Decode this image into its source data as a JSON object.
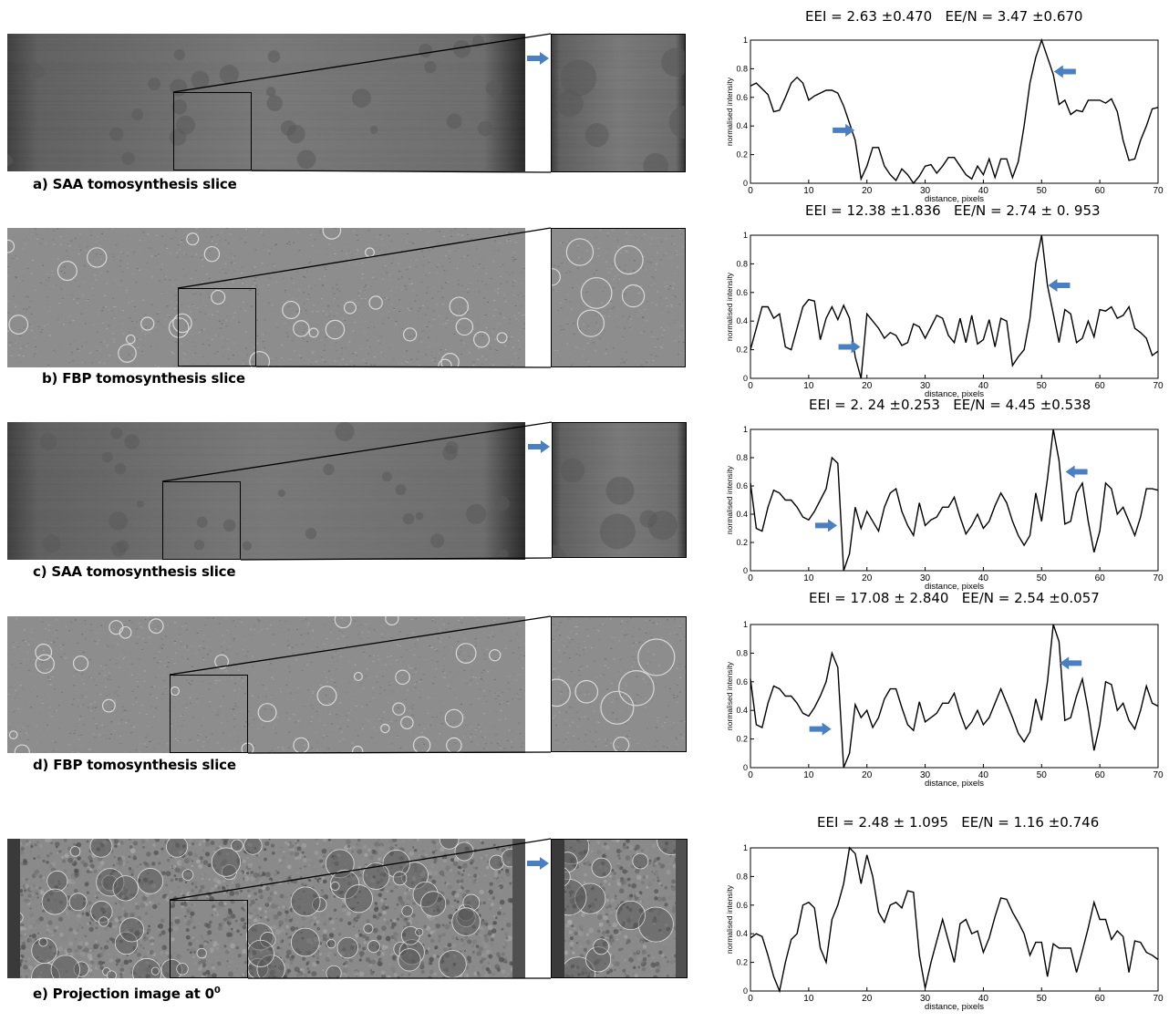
{
  "panels": [
    {
      "caption": "a)  SAA tomosynthesis slice",
      "style": "saa",
      "arrow": true
    },
    {
      "caption": "b)  FBP tomosynthesis slice",
      "style": "fbp",
      "arrow": false
    },
    {
      "caption": "c)  SAA tomosynthesis slice",
      "style": "saa",
      "arrow": true
    },
    {
      "caption": "d)  FBP tomosynthesis slice",
      "style": "fbp",
      "arrow": false
    },
    {
      "caption": "e) Projection image at 0",
      "caption_sup": "0",
      "style": "proj",
      "arrow": true
    }
  ],
  "arrow_color": "#4a7fc1",
  "chart_data": [
    {
      "type": "line",
      "title": "EEI = 2.63 ±0.470   EE/N = 3.47 ±0.670",
      "xlabel": "distance, pixels",
      "ylabel": "normalised intensity",
      "xlim": [
        0,
        70
      ],
      "ylim": [
        0,
        1
      ],
      "xticks": [
        "0",
        "10",
        "20",
        "30",
        "40",
        "50",
        "60",
        "70"
      ],
      "yticks": [
        "0",
        "0.2",
        "0.4",
        "0.6",
        "0.8",
        "1"
      ],
      "x": [
        0,
        1,
        2,
        3,
        4,
        5,
        6,
        7,
        8,
        9,
        10,
        11,
        12,
        13,
        14,
        15,
        16,
        17,
        18,
        19,
        20,
        21,
        22,
        23,
        24,
        25,
        26,
        27,
        28,
        29,
        30,
        31,
        32,
        33,
        34,
        35,
        36,
        37,
        38,
        39,
        40,
        41,
        42,
        43,
        44,
        45,
        46,
        47,
        48,
        49,
        50,
        51,
        52,
        53,
        54,
        55,
        56,
        57,
        58,
        59,
        60,
        61,
        62,
        63,
        64,
        65,
        66,
        67,
        68,
        69,
        70
      ],
      "y": [
        0.68,
        0.7,
        0.66,
        0.62,
        0.5,
        0.51,
        0.6,
        0.7,
        0.74,
        0.7,
        0.58,
        0.61,
        0.63,
        0.65,
        0.65,
        0.63,
        0.54,
        0.42,
        0.3,
        0.03,
        0.12,
        0.25,
        0.25,
        0.12,
        0.06,
        0.02,
        0.1,
        0.06,
        0.0,
        0.05,
        0.12,
        0.13,
        0.07,
        0.12,
        0.18,
        0.18,
        0.12,
        0.06,
        0.03,
        0.12,
        0.06,
        0.17,
        0.04,
        0.17,
        0.17,
        0.04,
        0.15,
        0.4,
        0.7,
        0.88,
        1.0,
        0.88,
        0.76,
        0.55,
        0.58,
        0.48,
        0.51,
        0.5,
        0.58,
        0.58,
        0.58,
        0.56,
        0.59,
        0.5,
        0.3,
        0.16,
        0.17,
        0.3,
        0.4,
        0.52,
        0.53
      ],
      "arrows": [
        {
          "x": 16,
          "y": 0.37,
          "dir": "right"
        },
        {
          "x": 54,
          "y": 0.78,
          "dir": "left"
        }
      ]
    },
    {
      "type": "line",
      "title": "EEI = 12.38 ±1.836   EE/N = 2.74 ± 0. 953",
      "xlabel": "distance, pixels",
      "ylabel": "normalised intensity",
      "xlim": [
        0,
        70
      ],
      "ylim": [
        0,
        1
      ],
      "xticks": [
        "0",
        "10",
        "20",
        "30",
        "40",
        "50",
        "60",
        "70"
      ],
      "yticks": [
        "0",
        "0.2",
        "0.4",
        "0.6",
        "0.8",
        "1"
      ],
      "x": [
        0,
        1,
        2,
        3,
        4,
        5,
        6,
        7,
        8,
        9,
        10,
        11,
        12,
        13,
        14,
        15,
        16,
        17,
        18,
        19,
        20,
        21,
        22,
        23,
        24,
        25,
        26,
        27,
        28,
        29,
        30,
        31,
        32,
        33,
        34,
        35,
        36,
        37,
        38,
        39,
        40,
        41,
        42,
        43,
        44,
        45,
        46,
        47,
        48,
        49,
        50,
        51,
        52,
        53,
        54,
        55,
        56,
        57,
        58,
        59,
        60,
        61,
        62,
        63,
        64,
        65,
        66,
        67,
        68,
        69,
        70
      ],
      "y": [
        0.2,
        0.35,
        0.5,
        0.5,
        0.42,
        0.45,
        0.22,
        0.2,
        0.35,
        0.5,
        0.55,
        0.54,
        0.27,
        0.42,
        0.5,
        0.41,
        0.51,
        0.42,
        0.15,
        0.0,
        0.45,
        0.4,
        0.35,
        0.28,
        0.32,
        0.3,
        0.23,
        0.25,
        0.38,
        0.36,
        0.28,
        0.36,
        0.44,
        0.42,
        0.3,
        0.25,
        0.42,
        0.25,
        0.44,
        0.24,
        0.27,
        0.41,
        0.22,
        0.42,
        0.4,
        0.09,
        0.15,
        0.2,
        0.42,
        0.8,
        1.0,
        0.65,
        0.45,
        0.25,
        0.48,
        0.45,
        0.25,
        0.28,
        0.4,
        0.29,
        0.48,
        0.47,
        0.5,
        0.42,
        0.44,
        0.5,
        0.35,
        0.32,
        0.28,
        0.16,
        0.19
      ],
      "arrows": [
        {
          "x": 17,
          "y": 0.22,
          "dir": "right"
        },
        {
          "x": 53,
          "y": 0.65,
          "dir": "left"
        }
      ]
    },
    {
      "type": "line",
      "title": "EEI = 2. 24 ±0.253   EE/N = 4.45 ±0.538",
      "xlabel": "distance, pixels",
      "ylabel": "normalised intensity",
      "xlim": [
        0,
        70
      ],
      "ylim": [
        0,
        1
      ],
      "xticks": [
        "0",
        "10",
        "20",
        "30",
        "40",
        "50",
        "60",
        "70"
      ],
      "yticks": [
        "0",
        "0.2",
        "0.4",
        "0.6",
        "0.8",
        "1"
      ],
      "x": [
        0,
        1,
        2,
        3,
        4,
        5,
        6,
        7,
        8,
        9,
        10,
        11,
        12,
        13,
        14,
        15,
        16,
        17,
        18,
        19,
        20,
        21,
        22,
        23,
        24,
        25,
        26,
        27,
        28,
        29,
        30,
        31,
        32,
        33,
        34,
        35,
        36,
        37,
        38,
        39,
        40,
        41,
        42,
        43,
        44,
        45,
        46,
        47,
        48,
        49,
        50,
        51,
        52,
        53,
        54,
        55,
        56,
        57,
        58,
        59,
        60,
        61,
        62,
        63,
        64,
        65,
        66,
        67,
        68,
        69,
        70
      ],
      "y": [
        0.62,
        0.3,
        0.28,
        0.45,
        0.57,
        0.55,
        0.5,
        0.5,
        0.45,
        0.38,
        0.36,
        0.42,
        0.5,
        0.58,
        0.8,
        0.76,
        0.0,
        0.12,
        0.45,
        0.3,
        0.42,
        0.35,
        0.28,
        0.45,
        0.55,
        0.58,
        0.42,
        0.32,
        0.25,
        0.48,
        0.32,
        0.36,
        0.38,
        0.45,
        0.45,
        0.52,
        0.38,
        0.26,
        0.32,
        0.4,
        0.3,
        0.35,
        0.46,
        0.55,
        0.48,
        0.35,
        0.25,
        0.18,
        0.25,
        0.55,
        0.35,
        0.65,
        1.0,
        0.78,
        0.33,
        0.35,
        0.55,
        0.62,
        0.35,
        0.13,
        0.28,
        0.62,
        0.58,
        0.4,
        0.45,
        0.35,
        0.25,
        0.38,
        0.58,
        0.58,
        0.57
      ],
      "arrows": [
        {
          "x": 13,
          "y": 0.32,
          "dir": "right"
        },
        {
          "x": 56,
          "y": 0.7,
          "dir": "left"
        }
      ]
    },
    {
      "type": "line",
      "title": "EEI = 17.08 ± 2.840   EE/N = 2.54 ±0.057",
      "xlabel": "distance, pixels",
      "ylabel": "normalised intensity",
      "xlim": [
        0,
        70
      ],
      "ylim": [
        0,
        1
      ],
      "xticks": [
        "0",
        "10",
        "20",
        "30",
        "40",
        "50",
        "60",
        "70"
      ],
      "yticks": [
        "0",
        "0.2",
        "0.4",
        "0.6",
        "0.8",
        "1"
      ],
      "x": [
        0,
        1,
        2,
        3,
        4,
        5,
        6,
        7,
        8,
        9,
        10,
        11,
        12,
        13,
        14,
        15,
        16,
        17,
        18,
        19,
        20,
        21,
        22,
        23,
        24,
        25,
        26,
        27,
        28,
        29,
        30,
        31,
        32,
        33,
        34,
        35,
        36,
        37,
        38,
        39,
        40,
        41,
        42,
        43,
        44,
        45,
        46,
        47,
        48,
        49,
        50,
        51,
        52,
        53,
        54,
        55,
        56,
        57,
        58,
        59,
        60,
        61,
        62,
        63,
        64,
        65,
        66,
        67,
        68,
        69,
        70
      ],
      "y": [
        0.62,
        0.3,
        0.28,
        0.45,
        0.57,
        0.55,
        0.5,
        0.5,
        0.45,
        0.38,
        0.36,
        0.42,
        0.5,
        0.6,
        0.8,
        0.7,
        0.0,
        0.1,
        0.44,
        0.35,
        0.4,
        0.28,
        0.35,
        0.48,
        0.55,
        0.55,
        0.42,
        0.3,
        0.26,
        0.46,
        0.32,
        0.35,
        0.38,
        0.45,
        0.45,
        0.52,
        0.38,
        0.27,
        0.32,
        0.4,
        0.3,
        0.35,
        0.45,
        0.55,
        0.45,
        0.35,
        0.24,
        0.18,
        0.25,
        0.48,
        0.33,
        0.6,
        1.0,
        0.88,
        0.33,
        0.35,
        0.5,
        0.62,
        0.4,
        0.12,
        0.3,
        0.6,
        0.58,
        0.4,
        0.45,
        0.33,
        0.27,
        0.4,
        0.57,
        0.45,
        0.43
      ],
      "arrows": [
        {
          "x": 12,
          "y": 0.27,
          "dir": "right"
        },
        {
          "x": 55,
          "y": 0.73,
          "dir": "left"
        }
      ]
    },
    {
      "type": "line",
      "title": "EEI = 2.48 ± 1.095   EE/N = 1.16 ±0.746",
      "xlabel": "distance, pixels",
      "ylabel": "normalised intensity",
      "xlim": [
        0,
        70
      ],
      "ylim": [
        0,
        1
      ],
      "xticks": [
        "0",
        "10",
        "20",
        "30",
        "40",
        "50",
        "60",
        "70"
      ],
      "yticks": [
        "0",
        "0.2",
        "0.4",
        "0.6",
        "0.8",
        "1"
      ],
      "x": [
        0,
        1,
        2,
        3,
        4,
        5,
        6,
        7,
        8,
        9,
        10,
        11,
        12,
        13,
        14,
        15,
        16,
        17,
        18,
        19,
        20,
        21,
        22,
        23,
        24,
        25,
        26,
        27,
        28,
        29,
        30,
        31,
        32,
        33,
        34,
        35,
        36,
        37,
        38,
        39,
        40,
        41,
        42,
        43,
        44,
        45,
        46,
        47,
        48,
        49,
        50,
        51,
        52,
        53,
        54,
        55,
        56,
        57,
        58,
        59,
        60,
        61,
        62,
        63,
        64,
        65,
        66,
        67,
        68,
        69,
        70
      ],
      "y": [
        0.37,
        0.4,
        0.38,
        0.25,
        0.1,
        0.0,
        0.2,
        0.36,
        0.4,
        0.6,
        0.62,
        0.58,
        0.3,
        0.2,
        0.5,
        0.6,
        0.75,
        1.0,
        0.96,
        0.75,
        0.95,
        0.8,
        0.55,
        0.48,
        0.6,
        0.62,
        0.58,
        0.7,
        0.69,
        0.25,
        0.02,
        0.2,
        0.35,
        0.5,
        0.35,
        0.2,
        0.47,
        0.5,
        0.4,
        0.42,
        0.27,
        0.37,
        0.52,
        0.65,
        0.64,
        0.55,
        0.48,
        0.4,
        0.25,
        0.34,
        0.34,
        0.1,
        0.33,
        0.3,
        0.3,
        0.3,
        0.13,
        0.28,
        0.44,
        0.62,
        0.5,
        0.5,
        0.36,
        0.42,
        0.38,
        0.13,
        0.35,
        0.34,
        0.27,
        0.25,
        0.22
      ],
      "arrows": []
    }
  ]
}
